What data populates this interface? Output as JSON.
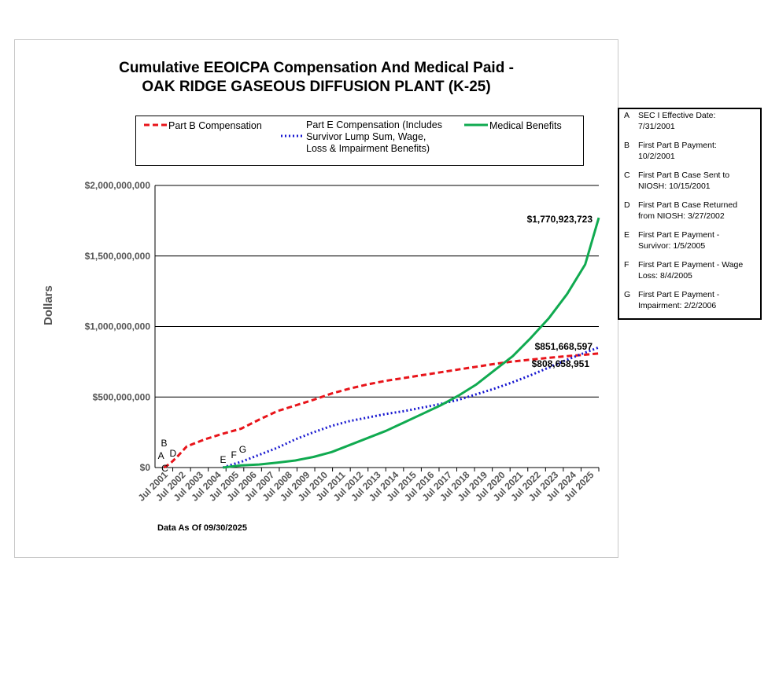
{
  "chart_data": {
    "type": "line",
    "title": [
      "Cumulative EEOICPA Compensation And Medical Paid -",
      "OAK RIDGE GASEOUS DIFFUSION PLANT (K-25)"
    ],
    "ylabel": "Dollars",
    "ylim": [
      0,
      2000000000
    ],
    "y_ticks": [
      "$0",
      "$500,000,000",
      "$1,000,000,000",
      "$1,500,000,000",
      "$2,000,000,000"
    ],
    "y_tick_values": [
      0,
      500000000,
      1000000000,
      1500000000,
      2000000000
    ],
    "categories": [
      "Jul 2001",
      "Jul 2002",
      "Jul 2003",
      "Jul 2004",
      "Jul 2005",
      "Jul 2006",
      "Jul 2007",
      "Jul 2008",
      "Jul 2009",
      "Jul 2010",
      "Jul 2011",
      "Jul 2012",
      "Jul 2013",
      "Jul 2014",
      "Jul 2015",
      "Jul 2016",
      "Jul 2017",
      "Jul 2018",
      "Jul 2019",
      "Jul 2020",
      "Jul 2021",
      "Jul 2022",
      "Jul 2023",
      "Jul 2024",
      "Jul 2025"
    ],
    "grid": true,
    "series": [
      {
        "name": "Part B Compensation",
        "color": "#e8141a",
        "style": "dashed",
        "points": [
          [
            2001.75,
            0
          ],
          [
            2002.1,
            30000000
          ],
          [
            2002.5,
            80000000
          ],
          [
            2003.0,
            150000000
          ],
          [
            2004.0,
            200000000
          ],
          [
            2005.0,
            240000000
          ],
          [
            2006.0,
            275000000
          ],
          [
            2007.0,
            340000000
          ],
          [
            2008.0,
            400000000
          ],
          [
            2009.0,
            440000000
          ],
          [
            2010.0,
            480000000
          ],
          [
            2011.0,
            525000000
          ],
          [
            2012.0,
            560000000
          ],
          [
            2013.0,
            590000000
          ],
          [
            2014.0,
            615000000
          ],
          [
            2015.0,
            635000000
          ],
          [
            2016.0,
            655000000
          ],
          [
            2017.0,
            675000000
          ],
          [
            2018.0,
            695000000
          ],
          [
            2019.0,
            715000000
          ],
          [
            2020.0,
            735000000
          ],
          [
            2021.0,
            752000000
          ],
          [
            2022.0,
            765000000
          ],
          [
            2023.0,
            778000000
          ],
          [
            2024.0,
            790000000
          ],
          [
            2025.0,
            800000000
          ],
          [
            2025.75,
            808658951
          ]
        ]
      },
      {
        "name": "Part E Compensation (Includes Survivor Lump Sum, Wage, Loss & Impairment Benefits)",
        "color": "#1818d0",
        "style": "dotted",
        "points": [
          [
            2005.0,
            0
          ],
          [
            2005.6,
            25000000
          ],
          [
            2006.0,
            40000000
          ],
          [
            2007.0,
            90000000
          ],
          [
            2008.0,
            140000000
          ],
          [
            2009.0,
            200000000
          ],
          [
            2010.0,
            250000000
          ],
          [
            2011.0,
            295000000
          ],
          [
            2012.0,
            330000000
          ],
          [
            2013.0,
            355000000
          ],
          [
            2014.0,
            380000000
          ],
          [
            2015.0,
            400000000
          ],
          [
            2016.0,
            425000000
          ],
          [
            2017.0,
            450000000
          ],
          [
            2018.0,
            480000000
          ],
          [
            2019.0,
            520000000
          ],
          [
            2020.0,
            560000000
          ],
          [
            2021.0,
            605000000
          ],
          [
            2022.0,
            655000000
          ],
          [
            2023.0,
            710000000
          ],
          [
            2024.0,
            765000000
          ],
          [
            2025.0,
            815000000
          ],
          [
            2025.75,
            851668597
          ]
        ]
      },
      {
        "name": "Medical Benefits",
        "color": "#10aa50",
        "style": "solid",
        "points": [
          [
            2005.0,
            0
          ],
          [
            2006.0,
            15000000
          ],
          [
            2007.0,
            22000000
          ],
          [
            2008.0,
            35000000
          ],
          [
            2009.0,
            50000000
          ],
          [
            2010.0,
            75000000
          ],
          [
            2011.0,
            110000000
          ],
          [
            2012.0,
            160000000
          ],
          [
            2013.0,
            210000000
          ],
          [
            2014.0,
            260000000
          ],
          [
            2015.0,
            320000000
          ],
          [
            2016.0,
            380000000
          ],
          [
            2017.0,
            440000000
          ],
          [
            2018.0,
            510000000
          ],
          [
            2019.0,
            590000000
          ],
          [
            2020.0,
            690000000
          ],
          [
            2021.0,
            790000000
          ],
          [
            2022.0,
            920000000
          ],
          [
            2023.0,
            1060000000
          ],
          [
            2024.0,
            1230000000
          ],
          [
            2025.0,
            1440000000
          ],
          [
            2025.75,
            1770923723
          ]
        ]
      }
    ],
    "value_labels": [
      {
        "text": "$1,770,923,723",
        "x": 2025.75,
        "y": 1770923723
      },
      {
        "text": "$851,668,597",
        "x": 2025.75,
        "y": 851668597
      },
      {
        "text": "$808,658,951",
        "x": 2025.75,
        "y": 808658951
      }
    ],
    "event_markers": [
      {
        "letter": "A",
        "x": 2001.58
      },
      {
        "letter": "B",
        "x": 2001.75
      },
      {
        "letter": "C",
        "x": 2001.79
      },
      {
        "letter": "D",
        "x": 2002.24
      },
      {
        "letter": "E",
        "x": 2005.01
      },
      {
        "letter": "F",
        "x": 2005.6
      },
      {
        "letter": "G",
        "x": 2006.09
      }
    ]
  },
  "legend": {
    "part_b": "Part B Compensation",
    "part_e_lines": [
      "Part E Compensation (Includes",
      "Survivor Lump Sum, Wage,",
      "Loss & Impairment Benefits)"
    ],
    "medical": "Medical Benefits"
  },
  "data_as_of": "Data As Of  09/30/2025",
  "key": [
    {
      "letter": "A",
      "lines": [
        "SEC I Effective Date:",
        "7/31/2001"
      ]
    },
    {
      "letter": "B",
      "lines": [
        "First Part B Payment:",
        "10/2/2001"
      ]
    },
    {
      "letter": "C",
      "lines": [
        "First Part B Case Sent to",
        "NIOSH: 10/15/2001"
      ]
    },
    {
      "letter": "D",
      "lines": [
        "First Part B Case Returned",
        "from NIOSH: 3/27/2002"
      ]
    },
    {
      "letter": "E",
      "lines": [
        "First Part E Payment -",
        "Survivor: 1/5/2005"
      ]
    },
    {
      "letter": "F",
      "lines": [
        "First Part E Payment - Wage",
        "Loss: 8/4/2005"
      ]
    },
    {
      "letter": "G",
      "lines": [
        "First Part E Payment -",
        "Impairment: 2/2/2006"
      ]
    }
  ]
}
